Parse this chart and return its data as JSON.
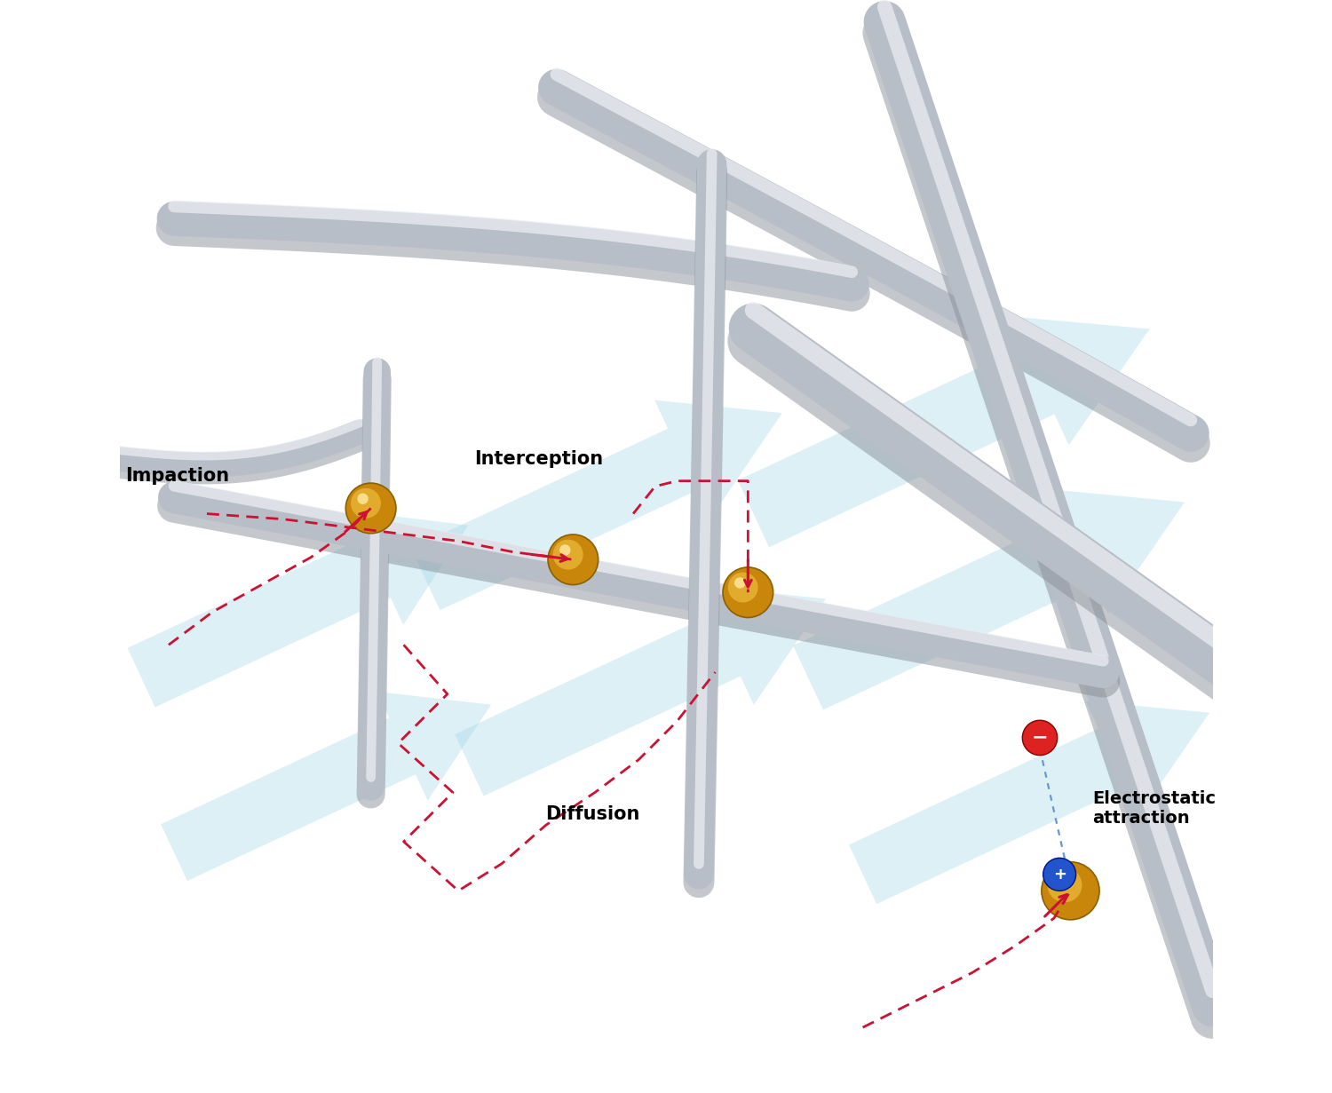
{
  "background_color": "#ffffff",
  "fiber_color_light": "#d0d5dc",
  "fiber_color_mid": "#b8bec8",
  "fiber_color_dark": "#8a9099",
  "fiber_highlight": "#eaeef2",
  "particle_color_outer": "#c8860a",
  "particle_color_inner": "#f0c040",
  "particle_highlight": "#fce090",
  "flow_arrow_color": "#a8d8e8",
  "dashed_path_color": "#cc1133",
  "label_impaction": "Impaction",
  "label_interception": "Interception",
  "label_diffusion": "Diffusion",
  "label_electrostatic": "Electrostatic\nattraction",
  "label_fontsize": 14,
  "label_fontweight": "bold",
  "electrostatic_plus_color": "#2255cc",
  "electrostatic_minus_color": "#cc2222"
}
